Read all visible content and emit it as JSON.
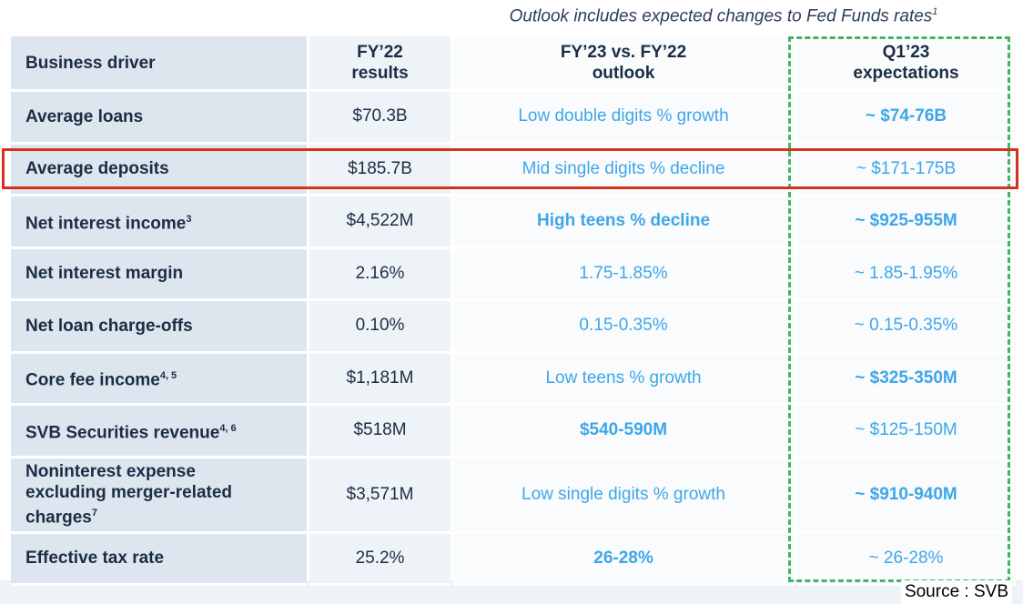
{
  "note": {
    "text": "Outlook includes expected changes to Fed Funds rates",
    "sup": "1"
  },
  "header": {
    "driver": "Business driver",
    "fy22": [
      "FY’22",
      "results"
    ],
    "outlook": [
      "FY’23 vs. FY’22",
      "outlook"
    ],
    "q1": [
      "Q1’23",
      "expectations"
    ]
  },
  "rows": [
    {
      "driver": "Average loans",
      "sup": "",
      "fy22": "$70.3B",
      "outlook": "Low double digits % growth",
      "q1": "~ $74-76B"
    },
    {
      "driver": "Average deposits",
      "sup": "",
      "fy22": "$185.7B",
      "outlook": "Mid single digits % decline",
      "q1": "~ $171-175B"
    },
    {
      "driver": "Net interest income",
      "sup": "3",
      "fy22": "$4,522M",
      "outlook": "High teens % decline",
      "q1": "~ $925-955M"
    },
    {
      "driver": "Net interest margin",
      "sup": "",
      "fy22": "2.16%",
      "outlook": "1.75-1.85%",
      "q1": "~ 1.85-1.95%"
    },
    {
      "driver": "Net loan charge-offs",
      "sup": "",
      "fy22": "0.10%",
      "outlook": "0.15-0.35%",
      "q1": "~ 0.15-0.35%"
    },
    {
      "driver": "Core fee income",
      "sup": "4, 5",
      "fy22": "$1,181M",
      "outlook": "Low teens % growth",
      "q1": "~ $325-350M"
    },
    {
      "driver": "SVB Securities revenue",
      "sup": "4, 6",
      "fy22": "$518M",
      "outlook": "$540-590M",
      "q1": "~ $125-150M"
    },
    {
      "driver_lines": [
        "Noninterest expense",
        "excluding merger-related",
        "charges"
      ],
      "sup": "7",
      "fy22": "$3,571M",
      "outlook": "Low single digits % growth",
      "q1": "~ $910-940M"
    },
    {
      "driver": "Effective tax rate",
      "sup": "",
      "fy22": "25.2%",
      "outlook": "26-28%",
      "q1": "~ 26-28%"
    }
  ],
  "source": "Source : SVB",
  "colors": {
    "accent_blue": "#3fa6e8",
    "navy_text": "#1b2d45",
    "highlight_red": "#d7311e",
    "dash_green": "#43b564"
  }
}
